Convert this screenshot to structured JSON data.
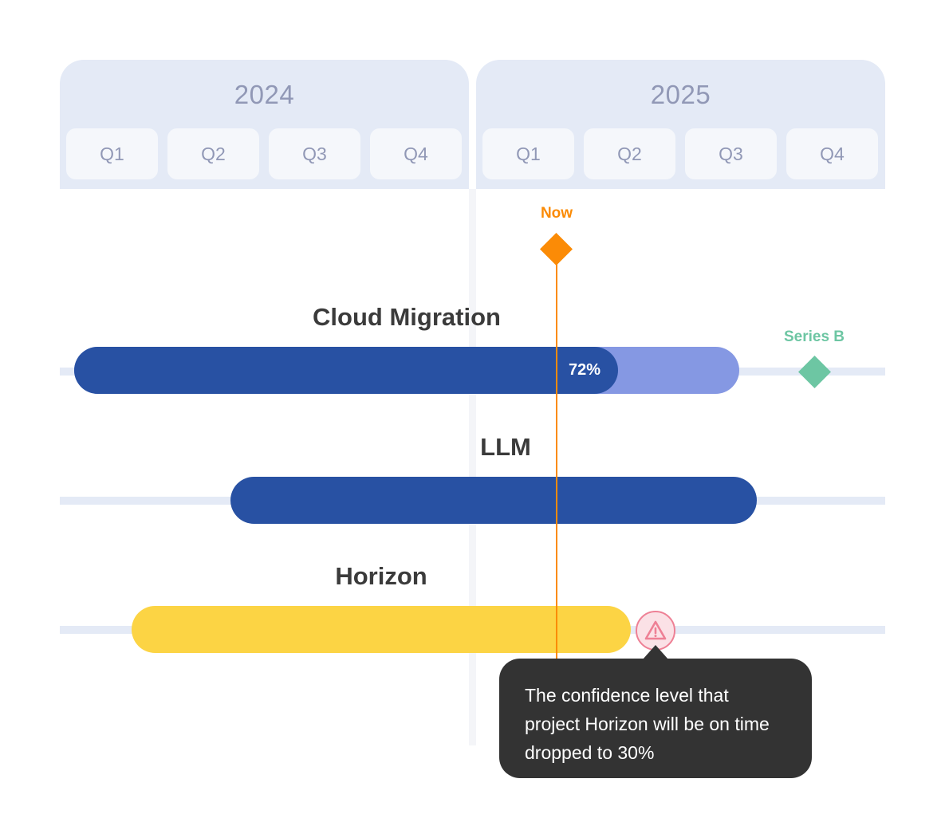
{
  "years": [
    {
      "label": "2024",
      "quarters": [
        "Q1",
        "Q2",
        "Q3",
        "Q4"
      ]
    },
    {
      "label": "2025",
      "quarters": [
        "Q1",
        "Q2",
        "Q3",
        "Q4"
      ]
    }
  ],
  "markers": {
    "now": {
      "label": "Now",
      "color": "#fb8b06"
    },
    "series_b": {
      "label": "Series B",
      "color": "#6dc6a3"
    }
  },
  "projects": [
    {
      "title": "Cloud Migration",
      "progress_label": "72%",
      "progress": 0.72,
      "color": "#2851a3",
      "remaining_color": "#8598e3"
    },
    {
      "title": "LLM",
      "color": "#2851a3"
    },
    {
      "title": "Horizon",
      "color": "#fcd444",
      "status": "warning"
    }
  ],
  "tooltip": {
    "text": "The confidence level that project Horizon will be on time dropped to 30%"
  },
  "icons": {
    "now_marker": "diamond-icon",
    "milestone": "diamond-icon",
    "warning": "warning-triangle-icon"
  }
}
